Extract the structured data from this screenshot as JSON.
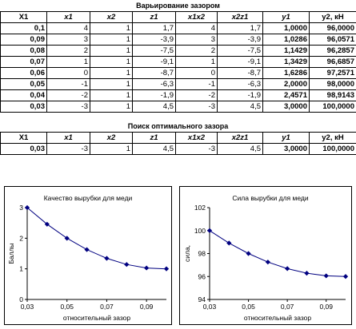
{
  "section1_title": "Варьирование зазором",
  "section2_title": "Поиск оптимального зазора",
  "columns": [
    "X1",
    "x1",
    "x2",
    "z1",
    "x1x2",
    "x2z1",
    "y1",
    "y2, кН"
  ],
  "table1_rows": [
    [
      "0,1",
      "4",
      "1",
      "1,7",
      "4",
      "1,7",
      "1,0000",
      "96,0000"
    ],
    [
      "0,09",
      "3",
      "1",
      "-3,9",
      "3",
      "-3,9",
      "1,0286",
      "96,0571"
    ],
    [
      "0,08",
      "2",
      "1",
      "-7,5",
      "2",
      "-7,5",
      "1,1429",
      "96,2857"
    ],
    [
      "0,07",
      "1",
      "1",
      "-9,1",
      "1",
      "-9,1",
      "1,3429",
      "96,6857"
    ],
    [
      "0,06",
      "0",
      "1",
      "-8,7",
      "0",
      "-8,7",
      "1,6286",
      "97,2571"
    ],
    [
      "0,05",
      "-1",
      "1",
      "-6,3",
      "-1",
      "-6,3",
      "2,0000",
      "98,0000"
    ],
    [
      "0,04",
      "-2",
      "1",
      "-1,9",
      "-2",
      "-1,9",
      "2,4571",
      "98,9143"
    ],
    [
      "0,03",
      "-3",
      "1",
      "4,5",
      "-3",
      "4,5",
      "3,0000",
      "100,0000"
    ]
  ],
  "table2_rows": [
    [
      "0,03",
      "-3",
      "1",
      "4,5",
      "-3",
      "4,5",
      "3,0000",
      "100,0000"
    ]
  ],
  "chart_data": [
    {
      "type": "line",
      "title": "Качество вырубки для меди",
      "xlabel": "относительный зазор",
      "ylabel": "Баллы",
      "x": [
        0.03,
        0.04,
        0.05,
        0.06,
        0.07,
        0.08,
        0.09,
        0.1
      ],
      "y": [
        3.0,
        2.4571,
        2.0,
        1.6286,
        1.3429,
        1.1429,
        1.0286,
        1.0
      ],
      "xlim": [
        0.03,
        0.1
      ],
      "ylim": [
        0,
        3
      ],
      "xticks": [
        0.03,
        0.05,
        0.07,
        0.09
      ],
      "xtick_labels": [
        "0,03",
        "0,05",
        "0,07",
        "0,09"
      ],
      "yticks": [
        0,
        1,
        2,
        3
      ],
      "ytick_labels": [
        "0",
        "1",
        "2",
        "3"
      ],
      "color": "#000080",
      "grid": false
    },
    {
      "type": "line",
      "title": "Сила вырубки для меди",
      "xlabel": "относительный зазор",
      "ylabel": "сила,",
      "x": [
        0.03,
        0.04,
        0.05,
        0.06,
        0.07,
        0.08,
        0.09,
        0.1
      ],
      "y": [
        100.0,
        98.9143,
        98.0,
        97.2571,
        96.6857,
        96.2857,
        96.0571,
        96.0
      ],
      "xlim": [
        0.03,
        0.1
      ],
      "ylim": [
        94,
        102
      ],
      "xticks": [
        0.03,
        0.05,
        0.07,
        0.09
      ],
      "xtick_labels": [
        "0,03",
        "0,05",
        "0,07",
        "0,09"
      ],
      "yticks": [
        94,
        96,
        98,
        100,
        102
      ],
      "ytick_labels": [
        "94",
        "96",
        "98",
        "100",
        "102"
      ],
      "color": "#000080",
      "grid": false
    }
  ]
}
